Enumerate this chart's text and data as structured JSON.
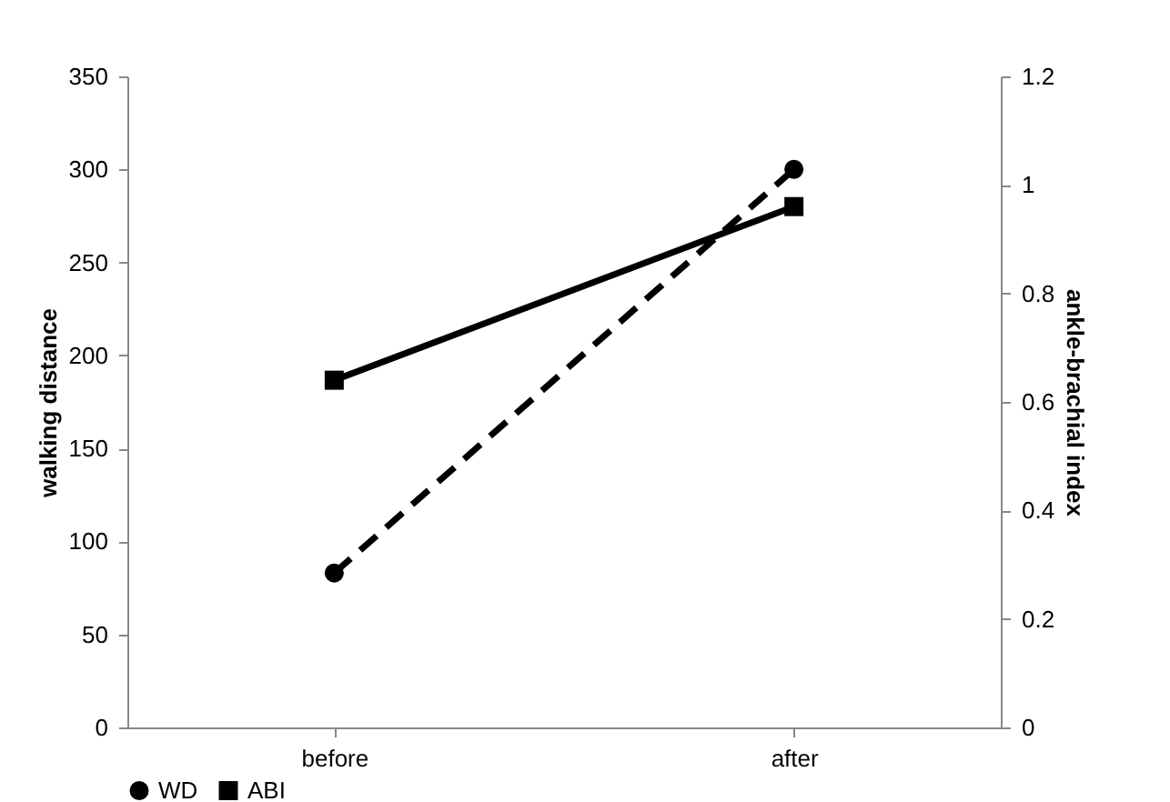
{
  "chart_data": {
    "type": "line",
    "categories": [
      "before",
      "after"
    ],
    "ylabel": "walking distance",
    "y2label": "ankle-brachial index",
    "ylim": [
      0,
      350
    ],
    "yticks": [
      0,
      50,
      100,
      150,
      200,
      250,
      300,
      350
    ],
    "y2lim": [
      0,
      1.2
    ],
    "y2ticks": [
      0,
      0.2,
      0.4,
      0.6,
      0.8,
      1,
      1.2
    ],
    "legend": "bottom",
    "grid": false,
    "series": [
      {
        "name": "WD",
        "color": "#000000",
        "values": [
          83,
          300
        ],
        "marker": "circle",
        "line_style": "dashed"
      },
      {
        "name": "ABI",
        "color": "#000000",
        "values": [
          0.64,
          0.96
        ],
        "axis": "y2",
        "marker": "square",
        "line_style": "solid"
      }
    ]
  }
}
